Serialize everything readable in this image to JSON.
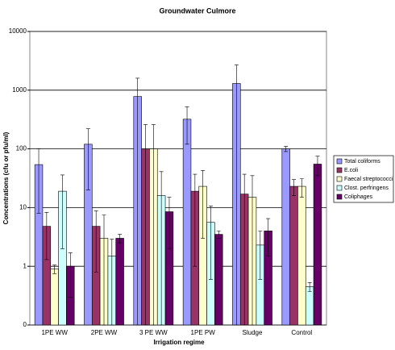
{
  "chart_data": {
    "type": "bar",
    "title": "Groundwater Culmore",
    "x_label": "Irrigation regime",
    "y_label": "Concentrations (cfu or pfu/ml)",
    "categories": [
      "1PE WW",
      "2PE WW",
      "3 PE WW",
      "1PE PW",
      "Sludge",
      "Control"
    ],
    "series": [
      {
        "name": "Total coliforms",
        "color": "#9999ff",
        "values": [
          54,
          120,
          780,
          320,
          1300,
          100
        ],
        "errors": [
          46,
          100,
          820,
          200,
          1400,
          10
        ]
      },
      {
        "name": "E.coli",
        "color": "#993366",
        "values": [
          4.8,
          4.8,
          100,
          19,
          17,
          23
        ],
        "errors": [
          3.5,
          4,
          160,
          18,
          20,
          7
        ]
      },
      {
        "name": "Faecal streptococci",
        "color": "#ffffcc",
        "values": [
          0.9,
          3.0,
          100,
          23,
          15,
          23
        ],
        "errors": [
          0.15,
          4.5,
          160,
          20,
          20,
          8
        ]
      },
      {
        "name": "Clost. perfringens",
        "color": "#ccffff",
        "values": [
          19,
          1.5,
          16,
          5.6,
          2.3,
          0.45
        ],
        "errors": [
          17,
          1.4,
          25,
          5,
          1.7,
          0.08
        ]
      },
      {
        "name": "Coliphages",
        "color": "#660066",
        "values": [
          1.0,
          3.0,
          8.5,
          3.5,
          4.0,
          55
        ],
        "errors": [
          0.7,
          0.5,
          6.5,
          0.5,
          2.5,
          20
        ]
      }
    ],
    "log_scale": true,
    "ylim": [
      0.1,
      10000
    ],
    "yticks": [
      {
        "value": 0.1,
        "label": "0"
      },
      1,
      10,
      100,
      1000,
      10000
    ],
    "grid": true,
    "legend": "right"
  }
}
